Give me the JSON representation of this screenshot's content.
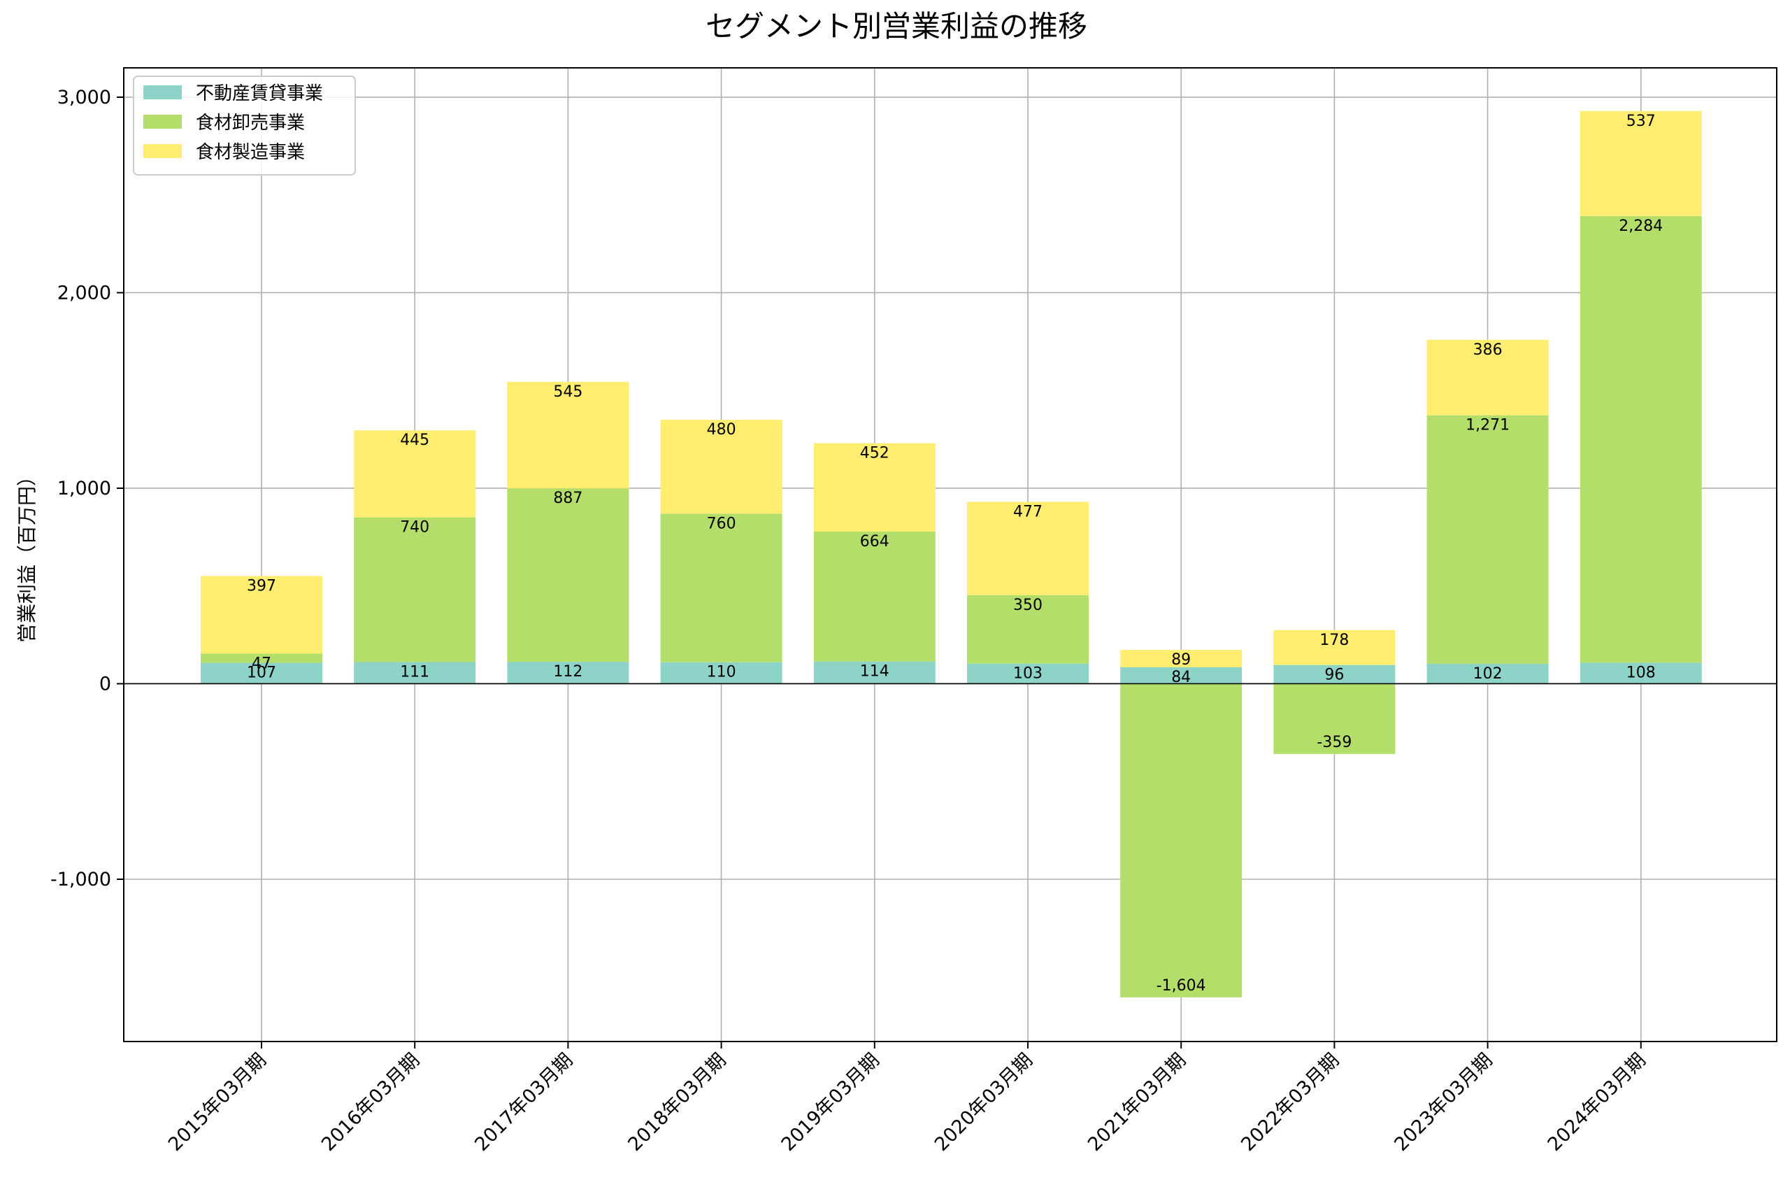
{
  "chart_data": {
    "type": "bar",
    "stacked": true,
    "title": "セグメント別営業利益の推移",
    "xlabel": "",
    "ylabel": "営業利益（百万円）",
    "ylim": [
      -1830,
      3150
    ],
    "yticks": [
      -1000,
      0,
      1000,
      2000,
      3000
    ],
    "ytick_labels": [
      "-1,000",
      "0",
      "1,000",
      "2,000",
      "3,000"
    ],
    "grid": true,
    "legend_position": "top-left",
    "categories": [
      "2015年03月期",
      "2016年03月期",
      "2017年03月期",
      "2018年03月期",
      "2019年03月期",
      "2020年03月期",
      "2021年03月期",
      "2022年03月期",
      "2023年03月期",
      "2024年03月期"
    ],
    "series": [
      {
        "name": "不動産賃貸事業",
        "color": "#8dd3c7",
        "values": [
          107,
          111,
          112,
          110,
          114,
          103,
          84,
          96,
          102,
          108
        ],
        "labels": [
          "107",
          "111",
          "112",
          "110",
          "114",
          "103",
          "84",
          "96",
          "102",
          "108"
        ]
      },
      {
        "name": "食材卸売事業",
        "color": "#b3de69",
        "values": [
          47,
          740,
          887,
          760,
          664,
          350,
          -1604,
          -359,
          1271,
          2284
        ],
        "labels": [
          "47",
          "740",
          "887",
          "760",
          "664",
          "350",
          "-1,604",
          "-359",
          "1,271",
          "2,284"
        ]
      },
      {
        "name": "食材製造事業",
        "color": "#ffed6f",
        "values": [
          397,
          445,
          545,
          480,
          452,
          477,
          89,
          178,
          386,
          537
        ],
        "labels": [
          "397",
          "445",
          "545",
          "480",
          "452",
          "477",
          "89",
          "178",
          "386",
          "537"
        ]
      }
    ]
  }
}
